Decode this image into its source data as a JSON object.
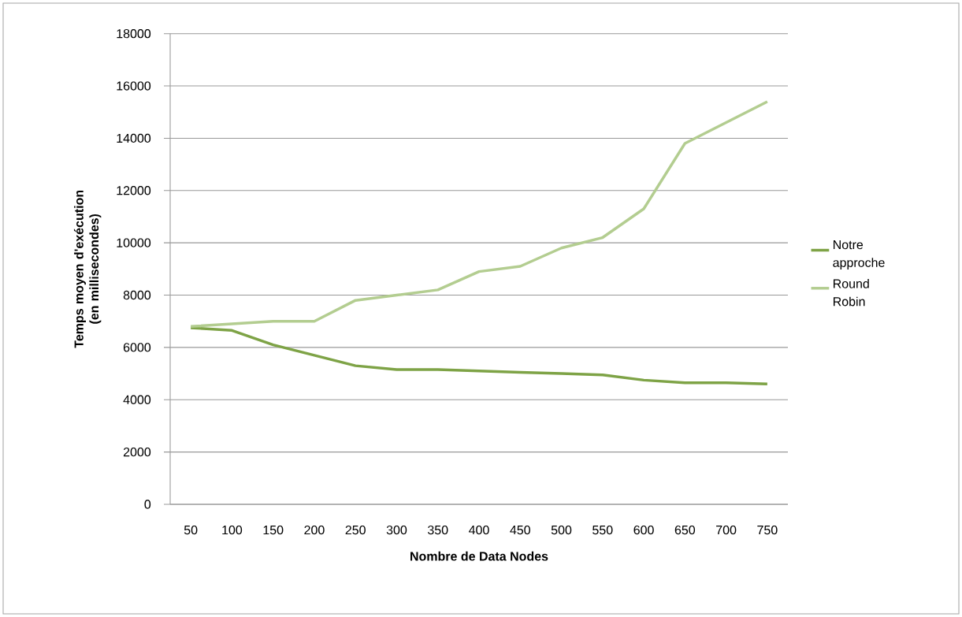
{
  "chart_data": {
    "type": "line",
    "xlabel": "Nombre de Data Nodes",
    "ylabel": "Temps moyen d'exécution (en millisecondes)",
    "categories": [
      "50",
      "100",
      "150",
      "200",
      "250",
      "300",
      "350",
      "400",
      "450",
      "500",
      "550",
      "600",
      "650",
      "700",
      "750"
    ],
    "series": [
      {
        "name": "Notre approche",
        "color": "#7ea346",
        "values": [
          6750,
          6650,
          6100,
          5700,
          5300,
          5150,
          5150,
          5100,
          5050,
          5000,
          4950,
          4750,
          4650,
          4650,
          4600
        ]
      },
      {
        "name": "Round Robin",
        "color": "#b3cd90",
        "values": [
          6800,
          6900,
          7000,
          7000,
          7800,
          8000,
          8200,
          8900,
          9100,
          9800,
          10200,
          11300,
          13800,
          14600,
          15400
        ]
      }
    ],
    "ylim": [
      0,
      18000
    ],
    "yticks": [
      0,
      2000,
      4000,
      6000,
      8000,
      10000,
      12000,
      14000,
      16000,
      18000
    ],
    "grid": "y",
    "legend": "right",
    "marker": "none",
    "line_style": "solid"
  }
}
